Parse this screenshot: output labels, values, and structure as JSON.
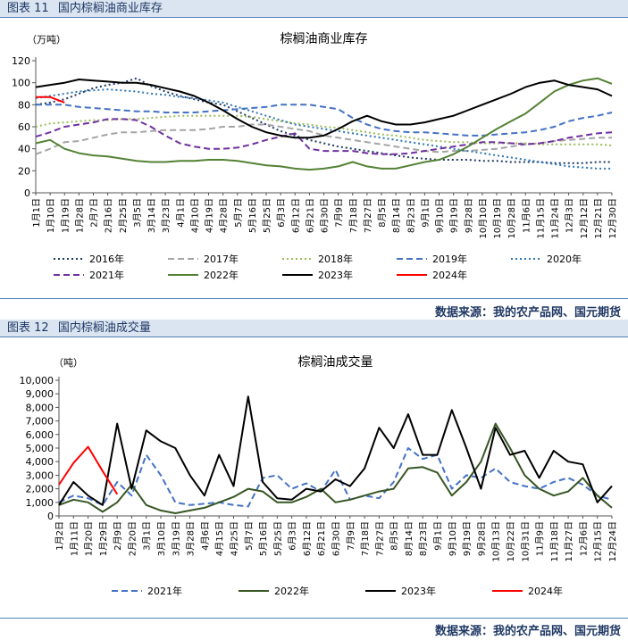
{
  "figure1": {
    "label": "图表 11",
    "title": "国内棕榈油商业库存",
    "chart_title": "棕榈油商业库存",
    "unit": "（万吨）",
    "source": "数据来源：我的农产品网、国元期货"
  },
  "figure2": {
    "label": "图表 12",
    "title": "国内棕榈油成交量",
    "chart_title": "棕榈油成交量",
    "unit": "（吨）",
    "source": "数据来源：我的农产品网、国元期货"
  },
  "chart_data": [
    {
      "type": "line",
      "title": "棕榈油商业库存",
      "ylabel": "（万吨）",
      "ylim": [
        0,
        120
      ],
      "yticks": [
        0,
        20,
        40,
        60,
        80,
        100,
        120
      ],
      "categories": [
        "1月1日",
        "1月10日",
        "1月19日",
        "1月28日",
        "2月7日",
        "2月16日",
        "2月25日",
        "3月5日",
        "3月14日",
        "3月23日",
        "4月1日",
        "4月10日",
        "4月19日",
        "4月28日",
        "5月7日",
        "5月16日",
        "5月25日",
        "6月3日",
        "6月12日",
        "6月21日",
        "6月30日",
        "7月9日",
        "7月18日",
        "7月27日",
        "8月5日",
        "8月14日",
        "8月23日",
        "9月1日",
        "9月10日",
        "9月19日",
        "9月28日",
        "10月10日",
        "10月19日",
        "10月28日",
        "11月6日",
        "11月15日",
        "11月24日",
        "12月3日",
        "12月12日",
        "12月21日",
        "12月30日"
      ],
      "legend_position": "bottom",
      "series": [
        {
          "name": "2016年",
          "color": "#1f3864",
          "dash": "dot",
          "values": [
            80,
            82,
            85,
            90,
            95,
            98,
            100,
            104,
            97,
            92,
            88,
            85,
            82,
            80,
            74,
            68,
            62,
            56,
            52,
            48,
            45,
            42,
            40,
            38,
            36,
            34,
            32,
            31,
            30,
            30,
            30,
            29,
            29,
            28,
            28,
            28,
            27,
            27,
            27,
            28,
            28
          ]
        },
        {
          "name": "2017年",
          "color": "#a5a5a5",
          "dash": "dash",
          "values": [
            35,
            40,
            46,
            47,
            50,
            53,
            55,
            55,
            56,
            57,
            57,
            57,
            58,
            60,
            60,
            62,
            62,
            60,
            58,
            56,
            52,
            50,
            48,
            46,
            44,
            42,
            40,
            38,
            37,
            38,
            38,
            39,
            40,
            42,
            44,
            45,
            47,
            48,
            49,
            50,
            50
          ]
        },
        {
          "name": "2018年",
          "color": "#9bbb59",
          "dash": "dot",
          "values": [
            60,
            63,
            64,
            65,
            66,
            66,
            67,
            67,
            68,
            69,
            70,
            70,
            70,
            70,
            70,
            69,
            67,
            65,
            63,
            62,
            60,
            59,
            57,
            55,
            53,
            52,
            50,
            48,
            47,
            46,
            46,
            45,
            45,
            45,
            45,
            44,
            44,
            44,
            44,
            44,
            43
          ]
        },
        {
          "name": "2019年",
          "color": "#4472c4",
          "dash": "dash",
          "values": [
            80,
            80,
            80,
            78,
            77,
            76,
            75,
            74,
            74,
            73,
            73,
            73,
            74,
            75,
            76,
            77,
            78,
            80,
            80,
            80,
            78,
            76,
            68,
            62,
            58,
            56,
            55,
            55,
            54,
            53,
            52,
            52,
            53,
            54,
            55,
            57,
            60,
            65,
            68,
            70,
            73
          ]
        },
        {
          "name": "2020年",
          "color": "#2e75b6",
          "dash": "dot",
          "values": [
            86,
            88,
            90,
            92,
            93,
            94,
            93,
            92,
            90,
            89,
            87,
            86,
            84,
            82,
            78,
            74,
            70,
            66,
            62,
            60,
            58,
            56,
            54,
            52,
            50,
            48,
            46,
            44,
            42,
            40,
            38,
            36,
            34,
            32,
            30,
            28,
            26,
            24,
            23,
            22,
            22
          ]
        },
        {
          "name": "2021年",
          "color": "#7030a0",
          "dash": "dash",
          "values": [
            51,
            55,
            60,
            62,
            64,
            67,
            67,
            66,
            60,
            52,
            45,
            42,
            40,
            40,
            41,
            44,
            48,
            51,
            54,
            40,
            38,
            38,
            38,
            36,
            35,
            35,
            36,
            38,
            40,
            42,
            44,
            46,
            46,
            45,
            44,
            45,
            47,
            50,
            52,
            54,
            55
          ]
        },
        {
          "name": "2022年",
          "color": "#548235",
          "dash": "solid",
          "values": [
            45,
            48,
            40,
            36,
            34,
            33,
            31,
            29,
            28,
            28,
            29,
            29,
            30,
            30,
            29,
            27,
            25,
            24,
            22,
            21,
            22,
            24,
            28,
            24,
            22,
            22,
            25,
            28,
            30,
            35,
            42,
            50,
            58,
            65,
            72,
            82,
            92,
            98,
            102,
            104,
            99
          ]
        },
        {
          "name": "2023年",
          "color": "#000000",
          "dash": "solid",
          "values": [
            96,
            98,
            100,
            103,
            102,
            101,
            100,
            100,
            98,
            95,
            92,
            88,
            82,
            75,
            67,
            60,
            55,
            52,
            50,
            50,
            52,
            58,
            65,
            70,
            65,
            62,
            62,
            64,
            67,
            70,
            75,
            80,
            85,
            90,
            96,
            100,
            102,
            98,
            96,
            94,
            88
          ]
        },
        {
          "name": "2024年",
          "color": "#ff0000",
          "dash": "solid",
          "values": [
            87,
            87,
            82,
            null,
            null,
            null,
            null,
            null,
            null,
            null,
            null,
            null,
            null,
            null,
            null,
            null,
            null,
            null,
            null,
            null,
            null,
            null,
            null,
            null,
            null,
            null,
            null,
            null,
            null,
            null,
            null,
            null,
            null,
            null,
            null,
            null,
            null,
            null,
            null,
            null,
            null
          ]
        }
      ]
    },
    {
      "type": "line",
      "title": "棕榈油成交量",
      "ylabel": "（吨）",
      "ylim": [
        0,
        10000
      ],
      "yticks": [
        0,
        1000,
        2000,
        3000,
        4000,
        5000,
        6000,
        7000,
        8000,
        9000,
        10000
      ],
      "ytick_labels": [
        "0",
        "1,000",
        "2,000",
        "3,000",
        "4,000",
        "5,000",
        "6,000",
        "7,000",
        "8,000",
        "9,000",
        "10,000"
      ],
      "categories": [
        "1月2日",
        "1月11日",
        "1月20日",
        "1月29日",
        "2月9日",
        "2月20日",
        "3月1日",
        "3月10日",
        "3月19日",
        "3月28日",
        "4月6日",
        "4月15日",
        "4月25日",
        "5月7日",
        "5月16日",
        "5月25日",
        "6月3日",
        "6月12日",
        "6月21日",
        "6月30日",
        "7月9日",
        "7月18日",
        "7月27日",
        "8月5日",
        "8月14日",
        "8月23日",
        "9月1日",
        "9月10日",
        "9月19日",
        "9月28日",
        "10月13日",
        "10月22日",
        "10月31日",
        "11月9日",
        "11月18日",
        "11月27日",
        "12月6日",
        "12月15日",
        "12月24日"
      ],
      "legend_position": "bottom",
      "series": [
        {
          "name": "2021年",
          "color": "#4472c4",
          "dash": "dash",
          "values": [
            1000,
            1500,
            1300,
            800,
            2500,
            1500,
            4500,
            3000,
            1000,
            800,
            900,
            1000,
            800,
            700,
            2800,
            3000,
            2000,
            2400,
            1800,
            3400,
            1200,
            1500,
            1300,
            2500,
            5000,
            4200,
            4500,
            2000,
            3000,
            2800,
            3500,
            2500,
            2200,
            2000,
            2500,
            2800,
            2300,
            1500,
            1200
          ]
        },
        {
          "name": "2022年",
          "color": "#375623",
          "dash": "solid",
          "values": [
            800,
            1200,
            1000,
            300,
            1000,
            2300,
            800,
            400,
            200,
            400,
            600,
            1000,
            1400,
            2000,
            1800,
            1000,
            1000,
            1400,
            2000,
            1000,
            1200,
            1500,
            1800,
            2000,
            3500,
            3600,
            3200,
            1500,
            2500,
            4000,
            6800,
            5000,
            3000,
            2000,
            1500,
            1800,
            2800,
            1500,
            600
          ]
        },
        {
          "name": "2023年",
          "color": "#000000",
          "dash": "solid",
          "values": [
            800,
            2500,
            1500,
            800,
            6800,
            2000,
            6300,
            5500,
            5000,
            3000,
            1500,
            4500,
            2200,
            8800,
            2500,
            1300,
            1200,
            2000,
            1800,
            2700,
            2200,
            3500,
            6500,
            5000,
            7500,
            4500,
            4500,
            7800,
            5000,
            2000,
            6500,
            4500,
            4800,
            2800,
            4800,
            4000,
            3800,
            1000,
            2200
          ]
        },
        {
          "name": "2024年",
          "color": "#ff0000",
          "dash": "solid",
          "values": [
            2300,
            3900,
            5100,
            3300,
            1600,
            null,
            null,
            null,
            null,
            null,
            null,
            null,
            null,
            null,
            null,
            null,
            null,
            null,
            null,
            null,
            null,
            null,
            null,
            null,
            null,
            null,
            null,
            null,
            null,
            null,
            null,
            null,
            null,
            null,
            null,
            null,
            null,
            null,
            null
          ]
        }
      ]
    }
  ]
}
